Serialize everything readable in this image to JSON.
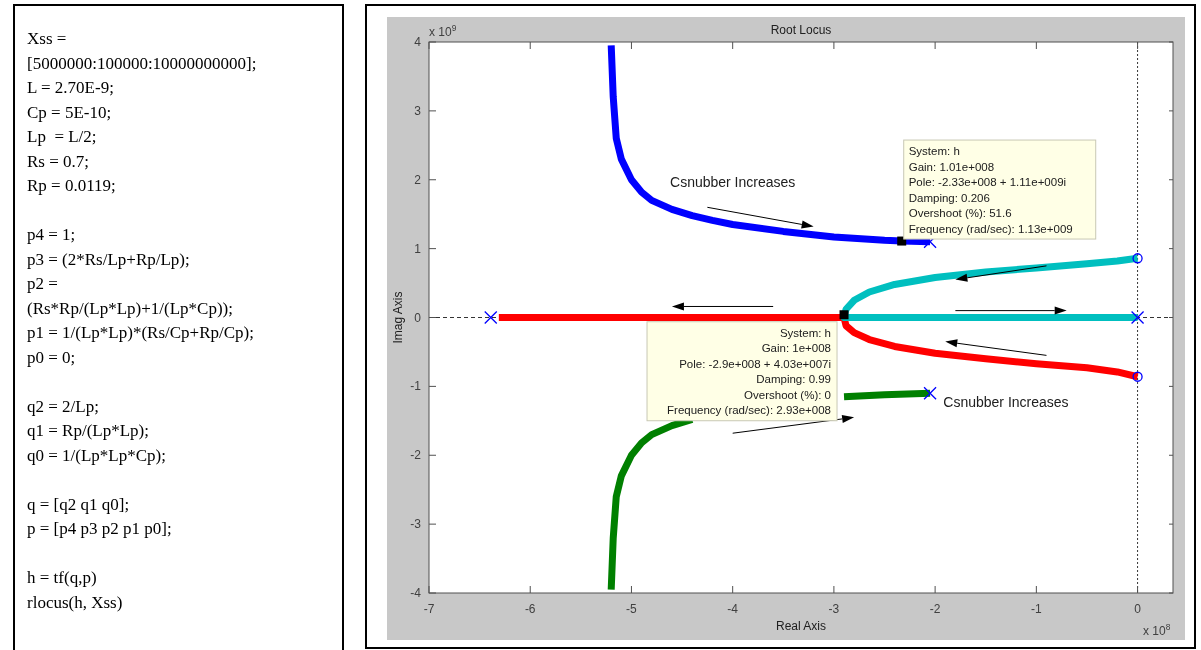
{
  "chart_data": [
    {
      "type": "other",
      "annotations": [
        "Xss =\n[5000000:100000:10000000000];\nL = 2.70E-9;\nCp = 5E-10;\nLp  = L/2;\nRs = 0.7;\nRp = 0.0119;",
        "p4 = 1;\np3 = (2*Rs/Lp+Rp/Lp);\np2 =\n(Rs*Rp/(Lp*Lp)+1/(Lp*Cp));\np1 = 1/(Lp*Lp)*(Rs/Cp+Rp/Cp);\np0 = 0;",
        "q2 = 2/Lp;\nq1 = Rp/(Lp*Lp);\nq0 = 1/(Lp*Lp*Cp);",
        "q = [q2 q1 q0];\np = [p4 p3 p2 p1 p0];",
        "h = tf(q,p)\nrlocus(h, Xss)"
      ]
    },
    {
      "type": "line",
      "title": "Root Locus",
      "xlabel": "Real Axis",
      "ylabel": "Imag Axis",
      "xlim": [
        -7,
        0.35
      ],
      "ylim": [
        -4,
        4
      ],
      "xticks": [
        -7,
        -6,
        -5,
        -4,
        -3,
        -2,
        -1,
        0
      ],
      "yticks": [
        -4,
        -3,
        -2,
        -1,
        0,
        1,
        2,
        3,
        4
      ],
      "grid": false,
      "ref_lines": [
        {
          "axis": "x",
          "value": 0,
          "color": "#000000",
          "line_style": "dotted"
        },
        {
          "axis": "y",
          "value": 0,
          "color": "#000000",
          "line_style": "dashed"
        }
      ],
      "series": [
        {
          "color": "#0000ff",
          "x": [
            -5.2,
            -5.18,
            -5.15,
            -5.1,
            -5.0,
            -4.9,
            -4.8,
            -4.6,
            -4.4,
            -4.2,
            -4.0,
            -3.5,
            -3.0,
            -2.5,
            -2.33,
            -2.05
          ],
          "values": [
            3.95,
            3.2,
            2.6,
            2.3,
            2.0,
            1.82,
            1.7,
            1.57,
            1.48,
            1.41,
            1.35,
            1.25,
            1.17,
            1.12,
            1.11,
            1.1
          ]
        },
        {
          "color": "#008000",
          "x": [
            -5.2,
            -5.18,
            -5.15,
            -5.1,
            -5.0,
            -4.9,
            -4.8,
            -4.6,
            -4.4,
            -4.2,
            -4.0,
            -3.5,
            -3.0,
            -2.9,
            -2.5,
            -2.05
          ],
          "values": [
            -3.95,
            -3.2,
            -2.6,
            -2.3,
            -2.0,
            -1.82,
            -1.7,
            -1.57,
            -1.48,
            null,
            null,
            null,
            null,
            -1.15,
            -1.12,
            -1.1
          ]
        },
        {
          "color": "#ff0000",
          "x": [
            -6.31,
            -2.9,
            -2.88,
            -2.8,
            -2.65,
            -2.4,
            -2.0,
            -1.5,
            -1.0,
            -0.5,
            -0.2,
            0
          ],
          "values": [
            0,
            0,
            -0.12,
            -0.22,
            -0.32,
            -0.42,
            -0.52,
            -0.6,
            -0.67,
            -0.73,
            -0.79,
            -0.86
          ]
        },
        {
          "color": "#00bfbf",
          "x": [
            0,
            -0.2,
            -0.5,
            -1.0,
            -1.5,
            -2.0,
            -2.4,
            -2.65,
            -2.8,
            -2.88,
            -2.9,
            0
          ],
          "values": [
            0.86,
            0.82,
            0.78,
            0.72,
            0.66,
            0.58,
            0.48,
            0.37,
            0.25,
            0.12,
            0,
            0
          ]
        },
        {
          "type": "scatter",
          "marker": "cross",
          "color": "#0000ff",
          "x": [
            -6.39,
            -2.05,
            -2.05,
            0
          ],
          "values": [
            0,
            1.1,
            -1.1,
            0
          ]
        },
        {
          "type": "scatter",
          "marker": "circle",
          "color": "#0000ff",
          "x": [
            0,
            0
          ],
          "values": [
            0.86,
            -0.86
          ]
        },
        {
          "type": "scatter",
          "marker": "square",
          "color": "#000000",
          "x": [
            -2.33,
            -2.9
          ],
          "values": [
            1.11,
            0.04
          ]
        }
      ],
      "annotations": [
        "x 10$^{9}$",
        "x 10$^{8}$",
        {
          "text": "System: h\nGain: 1.01e+008\nPole: -2.33e+008 + 1.11e+009i\nDamping: 0.206\nOvershoot (%): 51.6\nFrequency (rad/sec): 1.13e+009",
          "x": -2.33,
          "y": 1.11
        },
        {
          "text": "System: h\nGain: 1e+008\nPole: -2.9e+008 + 4.03e+007i\nDamping: 0.99\nOvershoot (%): 0\nFrequency (rad/sec): 2.93e+008",
          "x": -2.9,
          "y": 0.04
        },
        "Csnubber Increases",
        "Csnubber Increases"
      ]
    }
  ]
}
